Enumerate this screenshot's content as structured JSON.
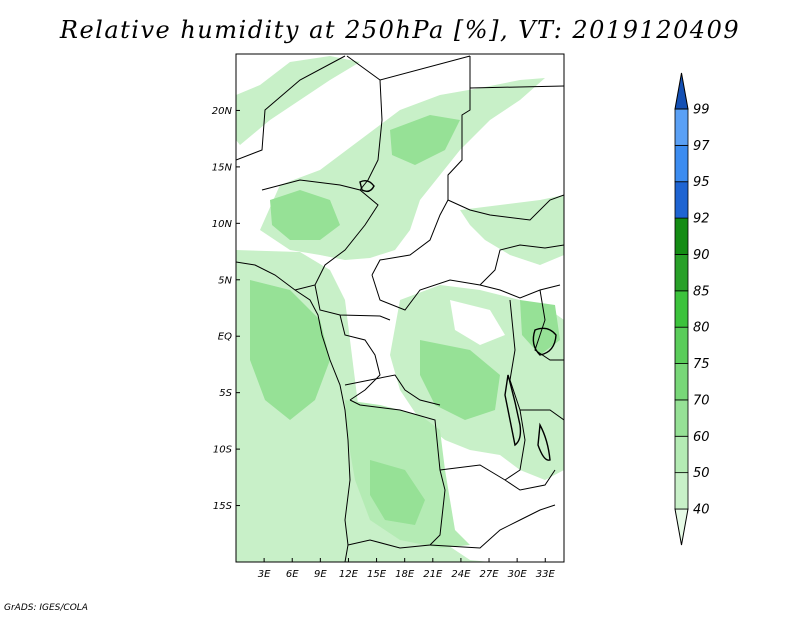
{
  "title": "Relative humidity at 250hPa [%], VT: 2019120409",
  "credit": "GrADS: IGES/COLA",
  "map": {
    "lon_range": [
      0,
      35
    ],
    "lat_range": [
      -20,
      25
    ],
    "lat_ticks": [
      "20N",
      "15N",
      "10N",
      "5N",
      "EQ",
      "5S",
      "10S",
      "15S"
    ],
    "lon_ticks": [
      "3E",
      "6E",
      "9E",
      "12E",
      "15E",
      "18E",
      "21E",
      "24E",
      "27E",
      "30E",
      "33E"
    ]
  },
  "colorbar": {
    "levels": [
      "40",
      "50",
      "60",
      "70",
      "75",
      "80",
      "85",
      "90",
      "92",
      "95",
      "97",
      "99"
    ],
    "colors": [
      "#e6fae6",
      "#c8f0c8",
      "#b4ebb4",
      "#96e196",
      "#78d778",
      "#5acd5a",
      "#3cc33c",
      "#28a028",
      "#148c14",
      "#1e64d2",
      "#3c8cf0",
      "#5aa0f5",
      "#1450b4"
    ]
  }
}
